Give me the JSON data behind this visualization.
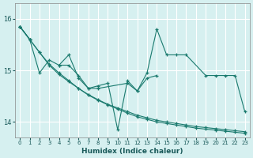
{
  "xlabel": "Humidex (Indice chaleur)",
  "background_color": "#d6f0f0",
  "grid_color": "#ffffff",
  "line_color": "#1a7a6e",
  "xlim": [
    -0.5,
    23.5
  ],
  "ylim": [
    13.7,
    16.3
  ],
  "yticks": [
    14,
    15,
    16
  ],
  "xticks": [
    0,
    1,
    2,
    3,
    4,
    5,
    6,
    7,
    8,
    9,
    10,
    11,
    12,
    13,
    14,
    15,
    16,
    17,
    18,
    19,
    20,
    21,
    22,
    23
  ],
  "series": [
    {
      "x": [
        0,
        1
      ],
      "y": [
        15.85,
        15.6
      ]
    },
    {
      "x": [
        0,
        1,
        2,
        3,
        4,
        5,
        6,
        7,
        8,
        9,
        10,
        11,
        12,
        13,
        14,
        15,
        16,
        17,
        19,
        20,
        21,
        22,
        23
      ],
      "y": [
        15.85,
        15.6,
        14.95,
        15.2,
        15.1,
        15.3,
        14.85,
        14.65,
        14.7,
        14.75,
        13.85,
        14.8,
        14.6,
        14.95,
        15.8,
        15.3,
        15.3,
        15.3,
        14.9,
        14.9,
        14.9,
        14.9,
        14.2
      ]
    },
    {
      "x": [
        4,
        5,
        6,
        7,
        8,
        11,
        12,
        13,
        14
      ],
      "y": [
        15.1,
        15.1,
        14.9,
        14.65,
        14.65,
        14.75,
        14.6,
        14.85,
        14.9
      ]
    },
    {
      "x": [
        0,
        1,
        2,
        3,
        4,
        5,
        6,
        7,
        8,
        9,
        10,
        11,
        12,
        13,
        14,
        15,
        16,
        17,
        18,
        19,
        20,
        21,
        22,
        23
      ],
      "y": [
        15.85,
        15.6,
        15.35,
        15.12,
        14.95,
        14.8,
        14.65,
        14.52,
        14.42,
        14.33,
        14.25,
        14.17,
        14.1,
        14.05,
        14.0,
        13.97,
        13.94,
        13.91,
        13.88,
        13.86,
        13.84,
        13.82,
        13.8,
        13.78
      ]
    },
    {
      "x": [
        0,
        1,
        2,
        3,
        4,
        5,
        6,
        7,
        8,
        9,
        10,
        11,
        12,
        13,
        14,
        15,
        16,
        17,
        18,
        19,
        20,
        21,
        22,
        23
      ],
      "y": [
        15.85,
        15.6,
        15.35,
        15.1,
        14.92,
        14.78,
        14.65,
        14.53,
        14.43,
        14.34,
        14.27,
        14.2,
        14.13,
        14.08,
        14.03,
        14.0,
        13.97,
        13.94,
        13.91,
        13.89,
        13.87,
        13.85,
        13.83,
        13.81
      ]
    }
  ]
}
